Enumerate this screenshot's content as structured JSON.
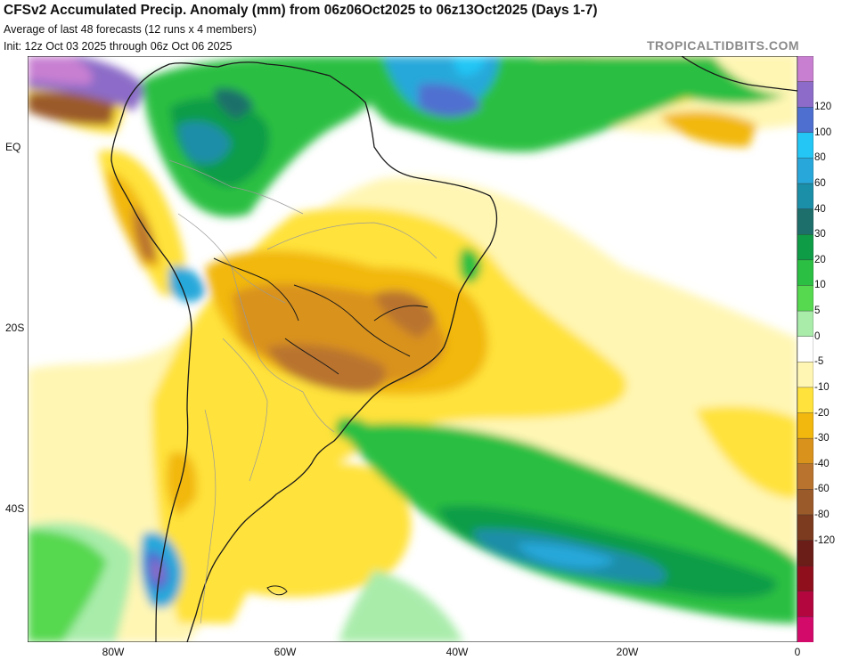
{
  "header": {
    "title": "CFSv2 Accumulated Precip. Anomaly (mm) from 06z06Oct2025 to 06z13Oct2025 (Days 1-7)",
    "subtitle": "Average of last 48 forecasts (12 runs x 4 members)",
    "init": "Init: 12z Oct 03 2025 through 06z Oct 06 2025",
    "credit": "TROPICALTIDBITS.COM"
  },
  "axes": {
    "lat_labels": [
      "EQ",
      "20S",
      "40S"
    ],
    "lon_labels": [
      "80W",
      "60W",
      "40W",
      "20W",
      "0"
    ]
  },
  "colorbar": {
    "labels": [
      "120",
      "100",
      "80",
      "60",
      "40",
      "30",
      "20",
      "10",
      "5",
      "0",
      "-5",
      "-10",
      "-20",
      "-30",
      "-40",
      "-60",
      "-80",
      "-120"
    ],
    "colors": [
      "#c87fd1",
      "#8c6cc8",
      "#4f6fd0",
      "#23c6f5",
      "#28a8da",
      "#1b8ea8",
      "#1d6f6b",
      "#0f9c47",
      "#2bbf43",
      "#56d84f",
      "#a9ecaa",
      "#ffffff",
      "#fff6b4",
      "#ffe23b",
      "#f2b80e",
      "#d9921c",
      "#b9732e",
      "#9b5a2a",
      "#7c3b1e",
      "#6b1d17",
      "#8f0f1d",
      "#b3063f",
      "#d40a6b"
    ]
  },
  "map": {
    "region": "South America and South Atlantic",
    "colors": {
      "land_outline": "#1a1a1a",
      "country_line": "#9a9a9a",
      "ocean": "#ffffff"
    }
  }
}
